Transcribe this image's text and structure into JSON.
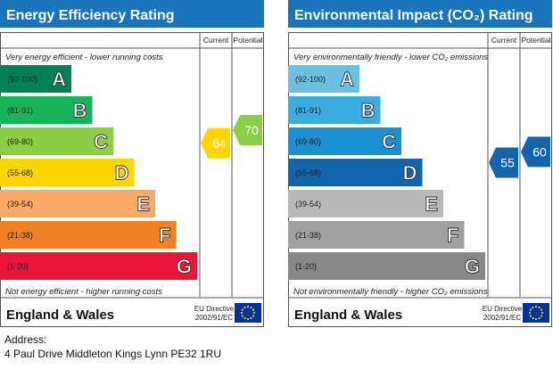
{
  "chart_data": [
    {
      "type": "bar",
      "title": "Energy Efficiency Rating",
      "column_headers": [
        "Current",
        "Potential"
      ],
      "top_note": "Very energy efficient - lower running costs",
      "bottom_note": "Not energy efficient - higher running costs",
      "bands": [
        {
          "range": "(92-100)",
          "letter": "A",
          "color": "#008054"
        },
        {
          "range": "(81-91)",
          "letter": "B",
          "color": "#19b459"
        },
        {
          "range": "(69-80)",
          "letter": "C",
          "color": "#8dce46"
        },
        {
          "range": "(55-68)",
          "letter": "D",
          "color": "#ffd500"
        },
        {
          "range": "(39-54)",
          "letter": "E",
          "color": "#fcaa65"
        },
        {
          "range": "(21-38)",
          "letter": "F",
          "color": "#ef8023"
        },
        {
          "range": "(1-20)",
          "letter": "G",
          "color": "#e9153b"
        }
      ],
      "current": {
        "value": 64,
        "band": "D",
        "color": "#ffd500"
      },
      "potential": {
        "value": 70,
        "band": "C",
        "color": "#8dce46"
      },
      "footer_region": "England & Wales",
      "footer_directive": [
        "EU Directive",
        "2002/91/EC"
      ]
    },
    {
      "type": "bar",
      "title": "Environmental Impact (CO₂) Rating",
      "column_headers": [
        "Current",
        "Potential"
      ],
      "top_note": "Very environmentally friendly - lower CO₂ emissions",
      "bottom_note": "Not environmentally friendly - higher CO₂ emissions",
      "bands": [
        {
          "range": "(92-100)",
          "letter": "A",
          "color": "#6cc1e3"
        },
        {
          "range": "(81-91)",
          "letter": "B",
          "color": "#3aaee0"
        },
        {
          "range": "(69-80)",
          "letter": "C",
          "color": "#1c8fd0"
        },
        {
          "range": "(55-68)",
          "letter": "D",
          "color": "#1264ab"
        },
        {
          "range": "(39-54)",
          "letter": "E",
          "color": "#b9b9b9"
        },
        {
          "range": "(21-38)",
          "letter": "F",
          "color": "#a1a1a1"
        },
        {
          "range": "(1-20)",
          "letter": "G",
          "color": "#878787"
        }
      ],
      "current": {
        "value": 55,
        "band": "D",
        "color": "#1264ab"
      },
      "potential": {
        "value": 60,
        "band": "D",
        "color": "#1264ab"
      },
      "footer_region": "England & Wales",
      "footer_directive": [
        "EU Directive",
        "2002/91/EC"
      ]
    }
  ],
  "address": {
    "label": "Address:",
    "line": "4 Paul Drive Middleton Kings Lynn  PE32 1RU"
  }
}
